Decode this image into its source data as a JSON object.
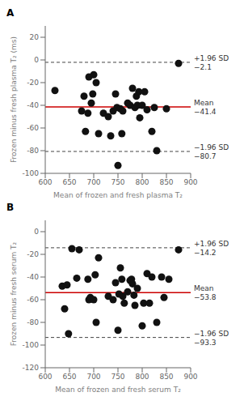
{
  "chart_data": [
    {
      "type": "scatter",
      "title": "A",
      "x": [
        620,
        675,
        680,
        683,
        688,
        690,
        695,
        698,
        700,
        705,
        710,
        720,
        730,
        735,
        740,
        745,
        748,
        750,
        755,
        758,
        760,
        770,
        775,
        780,
        785,
        788,
        790,
        793,
        795,
        800,
        805,
        810,
        820,
        825,
        830,
        850,
        875
      ],
      "values": [
        -27,
        -45,
        -32,
        -63,
        -47,
        -15,
        -38,
        -30,
        -13,
        -20,
        -65,
        -47,
        -50,
        -67,
        -45,
        -30,
        -42,
        -93,
        -43,
        -65,
        -45,
        -38,
        -40,
        -25,
        -42,
        -32,
        -40,
        -28,
        -51,
        -40,
        -28,
        -44,
        -63,
        -42,
        -80,
        -43,
        -3
      ],
      "color": "#111111",
      "marker": "circle",
      "xlim": [
        600,
        900
      ],
      "ylim": [
        -100,
        30
      ],
      "xticks": [
        600,
        650,
        700,
        750,
        800,
        850,
        900
      ],
      "yticks": [
        -100,
        -80,
        -60,
        -40,
        -20,
        0,
        20
      ],
      "xlabel": "Mean of frozen and fresh plasma T₂",
      "ylabel": "Frozen minus fresh plasma T₂ (ms)",
      "grid": false,
      "lines": [
        {
          "value": -41.4,
          "label": "Mean",
          "value_label": "−41.4",
          "color": "#cc0000",
          "line_style": "solid"
        },
        {
          "value": -2.1,
          "label": "+1.96 SD",
          "value_label": "−2.1",
          "color": "#444444",
          "line_style": "dashed"
        },
        {
          "value": -80.7,
          "label": "−1.96 SD",
          "value_label": "−80.7",
          "color": "#444444",
          "line_style": "dashed"
        }
      ]
    },
    {
      "type": "scatter",
      "title": "B",
      "x": [
        635,
        640,
        645,
        648,
        655,
        665,
        670,
        688,
        690,
        693,
        700,
        703,
        705,
        710,
        730,
        740,
        745,
        750,
        752,
        755,
        758,
        760,
        763,
        770,
        775,
        778,
        780,
        783,
        785,
        790,
        800,
        803,
        810,
        815,
        820,
        830,
        840,
        845,
        855,
        875
      ],
      "values": [
        -48,
        -68,
        -47,
        -90,
        -15,
        -41,
        -16,
        -42,
        -60,
        -58,
        -60,
        -38,
        -80,
        -23,
        -57,
        -60,
        -45,
        -87,
        -55,
        -32,
        -42,
        -57,
        -63,
        -53,
        -43,
        -42,
        -46,
        -56,
        -65,
        -50,
        -83,
        -63,
        -37,
        -63,
        -40,
        -80,
        -40,
        -58,
        -42,
        -16
      ],
      "color": "#111111",
      "marker": "circle",
      "xlim": [
        600,
        900
      ],
      "ylim": [
        -120,
        10
      ],
      "xticks": [
        600,
        650,
        700,
        750,
        800,
        850,
        900
      ],
      "yticks": [
        -120,
        -100,
        -80,
        -60,
        -40,
        -20,
        0
      ],
      "xlabel": "Mean of frozen and fresh serum T₂",
      "ylabel": "Frozen minus fresh serum T₂",
      "grid": false,
      "lines": [
        {
          "value": -53.8,
          "label": "Mean",
          "value_label": "−53.8",
          "color": "#cc0000",
          "line_style": "solid"
        },
        {
          "value": -14.2,
          "label": "+1.96 SD",
          "value_label": "−14.2",
          "color": "#444444",
          "line_style": "dashed"
        },
        {
          "value": -93.3,
          "label": "−1.96 SD",
          "value_label": "−93.3",
          "color": "#444444",
          "line_style": "dashed"
        }
      ]
    }
  ]
}
